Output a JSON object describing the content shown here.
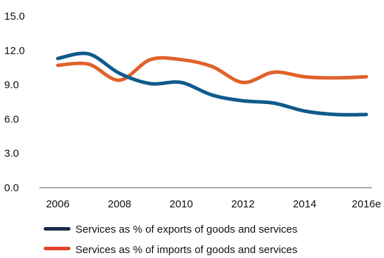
{
  "chart_data": {
    "type": "line",
    "x": [
      "2006",
      "2007",
      "2008",
      "2009",
      "2010",
      "2011",
      "2012",
      "2013",
      "2014",
      "2015",
      "2016e"
    ],
    "x_tick_labels": [
      "2006",
      "2008",
      "2010",
      "2012",
      "2014",
      "2016e"
    ],
    "y_tick_labels": [
      "0.0",
      "3.0",
      "6.0",
      "9.0",
      "12.0",
      "15.0"
    ],
    "ylim": [
      0,
      15
    ],
    "series": [
      {
        "name": "Services as % of exports of goods and services",
        "color": "#0f5a8c",
        "legend_color": "#1a2b4a",
        "values": [
          11.3,
          11.7,
          10.0,
          9.1,
          9.2,
          8.1,
          7.6,
          7.4,
          6.7,
          6.4,
          6.4
        ]
      },
      {
        "name": "Services as % of imports of goods and services",
        "color": "#e0622a",
        "legend_color": "#e0442a",
        "values": [
          10.7,
          10.8,
          9.4,
          11.2,
          11.2,
          10.6,
          9.2,
          10.1,
          9.7,
          9.6,
          9.7
        ]
      }
    ],
    "grid": false,
    "legend_position": "bottom-left"
  }
}
